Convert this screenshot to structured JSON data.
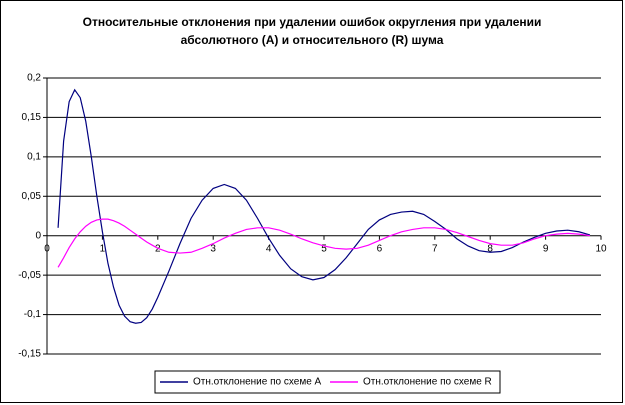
{
  "chart_data": {
    "type": "line",
    "title": [
      "Относительные отклонения при удалении ошибок округления при удалении",
      "абсолютного (A) и относительного (R) шума"
    ],
    "x": [
      0.2,
      0.3,
      0.4,
      0.5,
      0.6,
      0.7,
      0.8,
      0.9,
      1.0,
      1.1,
      1.2,
      1.3,
      1.4,
      1.5,
      1.6,
      1.7,
      1.8,
      1.9,
      2.0,
      2.2,
      2.4,
      2.6,
      2.8,
      3.0,
      3.2,
      3.4,
      3.6,
      3.8,
      4.0,
      4.2,
      4.4,
      4.6,
      4.8,
      5.0,
      5.2,
      5.4,
      5.6,
      5.8,
      6.0,
      6.2,
      6.4,
      6.6,
      6.8,
      7.0,
      7.2,
      7.4,
      7.6,
      7.8,
      8.0,
      8.2,
      8.4,
      8.6,
      8.8,
      9.0,
      9.2,
      9.4,
      9.6,
      9.8
    ],
    "series": [
      {
        "name": "Отн.отклонение по схеме A",
        "color": "#000080",
        "values": [
          0.01,
          0.12,
          0.17,
          0.185,
          0.175,
          0.145,
          0.1,
          0.05,
          0.005,
          -0.035,
          -0.065,
          -0.088,
          -0.102,
          -0.109,
          -0.111,
          -0.11,
          -0.104,
          -0.093,
          -0.078,
          -0.045,
          -0.01,
          0.022,
          0.045,
          0.06,
          0.065,
          0.06,
          0.045,
          0.022,
          -0.003,
          -0.025,
          -0.042,
          -0.052,
          -0.056,
          -0.053,
          -0.043,
          -0.028,
          -0.01,
          0.008,
          0.02,
          0.027,
          0.03,
          0.031,
          0.027,
          0.018,
          0.008,
          -0.004,
          -0.013,
          -0.019,
          -0.021,
          -0.02,
          -0.015,
          -0.008,
          -0.002,
          0.003,
          0.006,
          0.007,
          0.005,
          0.001
        ]
      },
      {
        "name": "Отн.отклонение по схеме R",
        "color": "#ff00ff",
        "values": [
          -0.04,
          -0.028,
          -0.015,
          -0.004,
          0.005,
          0.012,
          0.017,
          0.02,
          0.021,
          0.021,
          0.019,
          0.016,
          0.012,
          0.007,
          0.002,
          -0.003,
          -0.008,
          -0.012,
          -0.016,
          -0.021,
          -0.022,
          -0.021,
          -0.016,
          -0.01,
          -0.003,
          0.003,
          0.008,
          0.01,
          0.01,
          0.007,
          0.002,
          -0.004,
          -0.009,
          -0.013,
          -0.016,
          -0.017,
          -0.016,
          -0.012,
          -0.006,
          0,
          0.005,
          0.008,
          0.01,
          0.01,
          0.008,
          0.004,
          -0.001,
          -0.006,
          -0.01,
          -0.012,
          -0.012,
          -0.009,
          -0.004,
          0,
          0.002,
          0.003,
          0.002,
          0
        ]
      }
    ],
    "xlim": [
      0,
      10
    ],
    "xticks": [
      0,
      1,
      2,
      3,
      4,
      5,
      6,
      7,
      8,
      9,
      10
    ],
    "ylim": [
      -0.15,
      0.2
    ],
    "yticks": [
      {
        "value": -0.15,
        "label": "-0,15"
      },
      {
        "value": -0.1,
        "label": "-0,1"
      },
      {
        "value": -0.05,
        "label": "-0,05"
      },
      0,
      {
        "value": 0.05,
        "label": "0,05"
      },
      {
        "value": 0.1,
        "label": "0,1"
      },
      {
        "value": 0.15,
        "label": "0,15"
      },
      {
        "value": 0.2,
        "label": "0,2"
      }
    ],
    "grid": true,
    "legend": "bottom"
  }
}
